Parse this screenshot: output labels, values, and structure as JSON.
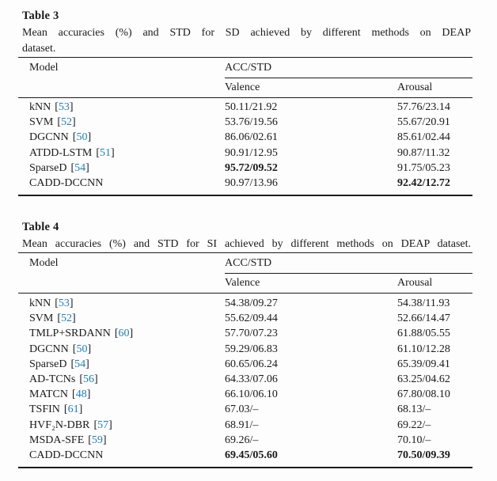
{
  "page": {
    "background": "#fdfdfd",
    "text_color": "#1a1a1a",
    "citation_color": "#1e7fb8"
  },
  "citation": {
    "open": "[",
    "close": "]"
  },
  "tables": [
    {
      "title": "Table 3",
      "caption_line1": "Mean accuracies (%) and STD for SD achieved by different methods on DEAP",
      "caption_line2": "dataset.",
      "columns": {
        "model": "Model",
        "group": "ACC/STD",
        "valence": "Valence",
        "arousal": "Arousal"
      },
      "rows": [
        {
          "model": "kNN",
          "cite": "53",
          "valence": "50.11/21.92",
          "arousal": "57.76/23.14"
        },
        {
          "model": "SVM",
          "cite": "52",
          "valence": "53.76/19.56",
          "arousal": "55.67/20.91"
        },
        {
          "model": "DGCNN",
          "cite": "50",
          "valence": "86.06/02.61",
          "arousal": "85.61/02.44"
        },
        {
          "model": "ATDD-LSTM",
          "cite": "51",
          "valence": "90.91/12.95",
          "arousal": "90.87/11.32"
        },
        {
          "model": "SparseD",
          "cite": "54",
          "valence": "95.72/09.52",
          "arousal": "91.75/05.23",
          "valence_bold": true
        },
        {
          "model": "CADD-DCCNN",
          "cite": null,
          "valence": "90.97/13.96",
          "arousal": "92.42/12.72",
          "arousal_bold": true
        }
      ]
    },
    {
      "title": "Table 4",
      "caption_line1": "Mean accuracies (%) and STD for SI achieved by different methods on DEAP dataset.",
      "caption_line2": null,
      "columns": {
        "model": "Model",
        "group": "ACC/STD",
        "valence": "Valence",
        "arousal": "Arousal"
      },
      "rows": [
        {
          "model": "kNN",
          "cite": "53",
          "valence": "54.38/09.27",
          "arousal": "54.38/11.93"
        },
        {
          "model": "SVM",
          "cite": "52",
          "valence": "55.62/09.44",
          "arousal": "52.66/14.47"
        },
        {
          "model": "TMLP+SRDANN",
          "cite": "60",
          "valence": "57.70/07.23",
          "arousal": "61.88/05.55"
        },
        {
          "model": "DGCNN",
          "cite": "50",
          "valence": "59.29/06.83",
          "arousal": "61.10/12.28"
        },
        {
          "model": "SparseD",
          "cite": "54",
          "valence": "60.65/06.24",
          "arousal": "65.39/09.41"
        },
        {
          "model": "AD-TCNs",
          "cite": "56",
          "valence": "64.33/07.06",
          "arousal": "63.25/04.62"
        },
        {
          "model": "MATCN",
          "cite": "48",
          "valence": "66.10/06.10",
          "arousal": "67.80/08.10"
        },
        {
          "model": "TSFIN",
          "cite": "61",
          "valence": "67.03/–",
          "arousal": "68.13/–"
        },
        {
          "model": "HVF₂N-DBR",
          "cite": "57",
          "valence": "68.91/–",
          "arousal": "69.22/–"
        },
        {
          "model": "MSDA-SFE",
          "cite": "59",
          "valence": "69.26/–",
          "arousal": "70.10/–"
        },
        {
          "model": "CADD-DCCNN",
          "cite": null,
          "valence": "69.45/05.60",
          "arousal": "70.50/09.39",
          "valence_bold": true,
          "arousal_bold": true
        }
      ]
    }
  ]
}
